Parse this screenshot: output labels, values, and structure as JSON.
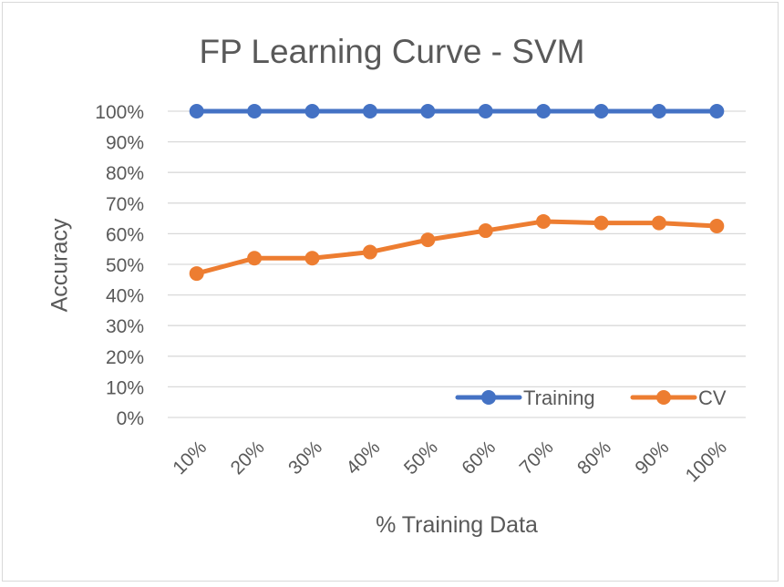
{
  "chart_data": {
    "type": "line",
    "title": "FP Learning Curve - SVM",
    "xlabel": "% Training Data",
    "ylabel": "Accuracy",
    "categories": [
      "10%",
      "20%",
      "30%",
      "40%",
      "50%",
      "60%",
      "70%",
      "80%",
      "90%",
      "100%"
    ],
    "y_ticks": [
      "0%",
      "10%",
      "20%",
      "30%",
      "40%",
      "50%",
      "60%",
      "70%",
      "80%",
      "90%",
      "100%"
    ],
    "ylim": [
      0,
      100
    ],
    "grid": true,
    "legend_position": "bottom-right",
    "series": [
      {
        "name": "Training",
        "color": "#4472c4",
        "values": [
          100,
          100,
          100,
          100,
          100,
          100,
          100,
          100,
          100,
          100
        ]
      },
      {
        "name": "CV",
        "color": "#ed7d31",
        "values": [
          47,
          52,
          52,
          54,
          58,
          61,
          64,
          63.5,
          63.5,
          62.5
        ]
      }
    ]
  }
}
